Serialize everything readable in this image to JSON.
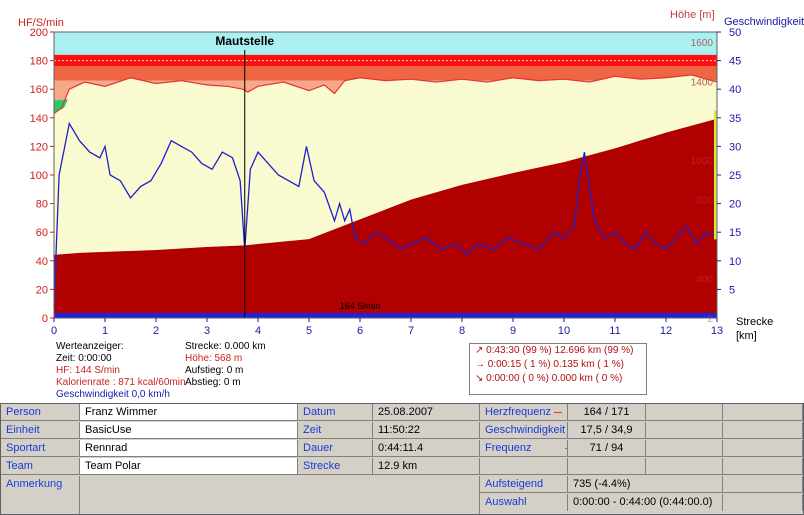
{
  "chart_data": {
    "type": "area",
    "xlabel": "Strecke [km]",
    "xlim": [
      0,
      13
    ],
    "xticks": [
      0,
      1,
      2,
      3,
      4,
      5,
      6,
      7,
      8,
      9,
      10,
      11,
      12,
      13
    ],
    "left_axis": {
      "label": "HF/S/min",
      "range": [
        0,
        200
      ],
      "ticks": [
        0,
        20,
        40,
        60,
        80,
        100,
        120,
        140,
        160,
        180,
        200
      ]
    },
    "right_axis_speed": {
      "label": "Geschwindigkeit",
      "range": [
        0,
        50
      ],
      "ticks": [
        5,
        10,
        15,
        20,
        25,
        30,
        35,
        40,
        45,
        50
      ]
    },
    "right_axis_altitude": {
      "label": "Höhe [m]",
      "ticks_shown": [
        "1600",
        "1400",
        "1000",
        "800",
        "400",
        "2"
      ]
    },
    "hr_zone": {
      "upper": 171,
      "lower": 150
    },
    "marker": {
      "label": "Mautstelle",
      "x": 3.74
    },
    "baseline_label": "164 S/min",
    "series": [
      {
        "name": "HF",
        "color": "#e83232",
        "x": [
          0,
          0.15,
          0.3,
          0.6,
          1.0,
          1.5,
          2.0,
          2.5,
          3.0,
          3.4,
          3.7,
          3.8,
          4.0,
          4.5,
          5.0,
          5.3,
          5.5,
          5.7,
          6.0,
          6.5,
          7.0,
          7.5,
          8.0,
          8.5,
          9.0,
          9.5,
          10.0,
          10.5,
          11.0,
          11.5,
          12.0,
          12.5,
          13
        ],
        "values": [
          143,
          147,
          160,
          165,
          162,
          168,
          164,
          166,
          163,
          162,
          160,
          158,
          162,
          165,
          159,
          163,
          157,
          166,
          168,
          166,
          167,
          165,
          167,
          165,
          168,
          166,
          167,
          165,
          169,
          167,
          168,
          170,
          165
        ]
      },
      {
        "name": "Höhe",
        "color": "#b00000",
        "unit": "m",
        "x": [
          0,
          0.5,
          1,
          2,
          3,
          3.74,
          4,
          5,
          6,
          7,
          8,
          9,
          10,
          11,
          12,
          13
        ],
        "values": [
          520,
          530,
          535,
          545,
          560,
          568,
          575,
          600,
          700,
          800,
          875,
          935,
          990,
          1060,
          1140,
          1210
        ]
      },
      {
        "name": "Geschwindigkeit",
        "color": "#1f1fcc",
        "unit": "km/h",
        "x": [
          0,
          0.1,
          0.3,
          0.5,
          0.7,
          0.9,
          1.0,
          1.1,
          1.3,
          1.5,
          1.7,
          1.9,
          2.1,
          2.3,
          2.5,
          2.7,
          2.9,
          3.1,
          3.3,
          3.5,
          3.65,
          3.74,
          3.85,
          4.0,
          4.2,
          4.4,
          4.6,
          4.8,
          4.95,
          5.1,
          5.3,
          5.5,
          5.6,
          5.7,
          5.8,
          5.9,
          6.1,
          6.3,
          6.5,
          6.8,
          7.0,
          7.3,
          7.6,
          7.9,
          8.1,
          8.3,
          8.6,
          8.9,
          9.2,
          9.5,
          9.8,
          10.0,
          10.2,
          10.3,
          10.4,
          10.5,
          10.6,
          10.8,
          11.0,
          11.2,
          11.4,
          11.6,
          11.8,
          12.0,
          12.2,
          12.4,
          12.6,
          12.8,
          13.0
        ],
        "values": [
          2,
          25,
          34,
          31,
          29,
          28,
          30,
          25,
          24,
          21,
          23,
          24,
          27,
          31,
          30,
          29,
          27,
          26,
          29,
          28,
          24,
          12,
          26,
          29,
          27,
          25,
          24,
          23,
          30,
          24,
          22,
          17,
          20,
          17,
          19,
          14,
          13,
          15,
          14,
          12,
          13,
          14,
          12,
          13,
          11,
          13,
          12,
          14,
          13,
          12,
          15,
          14,
          16,
          24,
          29,
          23,
          17,
          14,
          15,
          13,
          12,
          15,
          13,
          12,
          14,
          16,
          13,
          15,
          14
        ]
      }
    ]
  },
  "legend_info": {
    "title": "Werteanzeiger:",
    "zeit": "Zeit: 0:00:00",
    "hf": "HF: 144 S/min",
    "kalorien": "Kalorienrate : 871 kcal/60min",
    "geschw": "Geschwindigkeit 0,0 km/h",
    "strecke": "Strecke: 0.000 km",
    "hoehe": "Höhe: 568 m",
    "aufstieg": "Aufstieg: 0 m",
    "abstieg": "Abstieg: 0 m"
  },
  "stats_box": {
    "row1": "↗ 0:43:30  (99 %)  12.696 km  (99 %)",
    "row2": "→ 0:00:15  ( 1 %)   0.135 km  ( 1 %)",
    "row3": "↘ 0:00:00  ( 0 %)   0.000 km  ( 0 %)"
  },
  "details": {
    "person_label": "Person",
    "person": "Franz Wimmer",
    "einheit_label": "Einheit",
    "einheit": "BasicUse",
    "sportart_label": "Sportart",
    "sportart": "Rennrad",
    "team_label": "Team",
    "team": "Team Polar",
    "anmerkung_label": "Anmerkung",
    "datum_label": "Datum",
    "datum": "25.08.2007",
    "zeit_label": "Zeit",
    "zeit": "11:50:22",
    "dauer_label": "Dauer",
    "dauer": "0:44:11.4",
    "strecke_label": "Strecke",
    "strecke": "12.9 km",
    "herz_label": "Herzfrequenz",
    "herz": "164 / 171",
    "geschw_label": "Geschwindigkeit",
    "geschw": "17,5 / 34,9",
    "frequenz_label": "Frequenz",
    "frequenz": "71 / 94",
    "aufsteigend_label": "Aufsteigend",
    "aufsteigend": "735 (-4.4%)",
    "auswahl_label": "Auswahl",
    "auswahl": "0:00:00 - 0:44:00 (0:44:00.0)"
  },
  "colors": {
    "sky": "#aaf0f0",
    "zone_light": "#f8a888",
    "zone_mid": "#ee6644",
    "zone_red": "#ff1010",
    "hr_fill": "#fafad0",
    "altitude": "#b00000",
    "speed": "#1f1fcc",
    "label_blue": "#1a3ad6"
  }
}
